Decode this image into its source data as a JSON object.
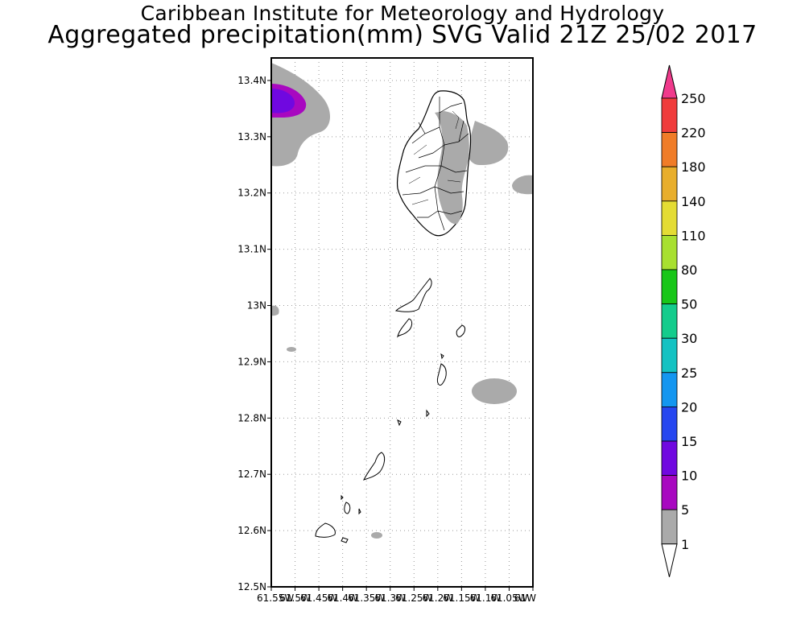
{
  "titles": {
    "line1": "Caribbean Institute for Meteorology and Hydrology",
    "line2": "Aggregated precipitation(mm) SVG Valid 21Z 25/02 2017"
  },
  "map": {
    "lat_ticks": [
      "13.4N",
      "13.3N",
      "13.2N",
      "13.1N",
      "13N",
      "12.9N",
      "12.8N",
      "12.7N",
      "12.6N",
      "12.5N"
    ],
    "lon_ticks": [
      "61.55W",
      "61.5W",
      "61.45W",
      "61.4W",
      "61.35W",
      "61.3W",
      "61.25W",
      "61.2W",
      "61.15W",
      "61.1W",
      "61.05W",
      "61W"
    ],
    "lat_range": [
      12.5,
      13.44
    ],
    "lon_range": [
      -61.55,
      -61.0
    ],
    "grid": true,
    "land_fill": "#ffffff",
    "coast_color": "#000000",
    "grid_color": "#999999"
  },
  "colorbar": {
    "labels": [
      "250",
      "220",
      "180",
      "140",
      "110",
      "80",
      "50",
      "30",
      "25",
      "20",
      "15",
      "10",
      "5",
      "1"
    ],
    "colors": [
      "#f03a8c",
      "#f03c3c",
      "#f07c28",
      "#e8ae2c",
      "#e4dc34",
      "#a8e030",
      "#18c618",
      "#14cc8c",
      "#14c2c2",
      "#1496f0",
      "#2646f0",
      "#7008e0",
      "#a808c0",
      "#aaaaaa",
      "#ffffff"
    ]
  }
}
